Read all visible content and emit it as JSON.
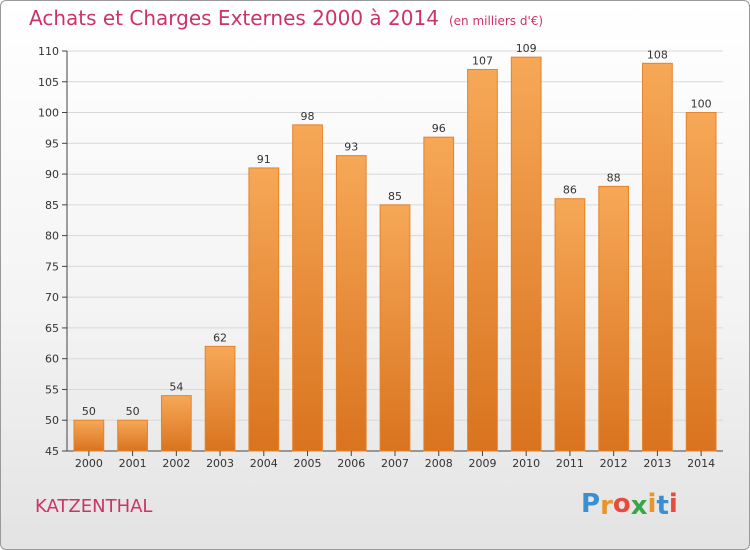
{
  "header": {
    "title": "Achats et Charges Externes 2000 à 2014",
    "subtitle": "(en milliers d'€)"
  },
  "footer": {
    "commune": "KATZENTHAL",
    "logo_letters": [
      "P",
      "r",
      "o",
      "x",
      "i",
      "t",
      "i"
    ],
    "logo_colors": [
      "#3a8fd0",
      "#e8962b",
      "#e84b3c",
      "#3aa64b",
      "#e8962b",
      "#3a8fd0",
      "#e84b3c"
    ]
  },
  "colors": {
    "bar_light": "#f6a857",
    "bar_dark": "#d9731f",
    "bar_stroke": "#e6822a",
    "grid": "#d8d8d8",
    "accent": "#cc3366"
  },
  "chart_data": {
    "type": "bar",
    "categories": [
      "2000",
      "2001",
      "2002",
      "2003",
      "2004",
      "2005",
      "2006",
      "2007",
      "2008",
      "2009",
      "2010",
      "2011",
      "2012",
      "2013",
      "2014"
    ],
    "values": [
      50,
      50,
      54,
      62,
      91,
      98,
      93,
      85,
      96,
      107,
      109,
      86,
      88,
      108,
      100
    ],
    "ylim": [
      45,
      110
    ],
    "yticks": [
      45,
      50,
      55,
      60,
      65,
      70,
      75,
      80,
      85,
      90,
      95,
      100,
      105,
      110
    ],
    "grid": true,
    "xlabel": "",
    "ylabel": ""
  }
}
